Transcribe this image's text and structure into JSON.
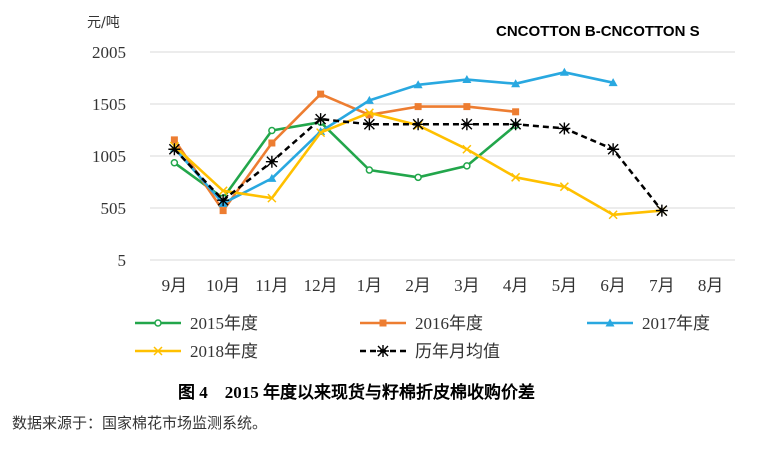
{
  "chart_data": {
    "type": "line",
    "title": "CNCOTTON B-CNCOTTON S",
    "ylabel": "元/吨",
    "xlabel": "",
    "ylim": [
      5,
      2005
    ],
    "yticks": [
      5,
      505,
      1005,
      1505,
      2005
    ],
    "grid": true,
    "legend_position": "bottom",
    "categories": [
      "9月",
      "10月",
      "11月",
      "12月",
      "1月",
      "2月",
      "3月",
      "4月",
      "5月",
      "6月",
      "7月",
      "8月"
    ],
    "series": [
      {
        "name": "2015年度",
        "color": "#22a64b",
        "marker": "circle",
        "dashed": false,
        "values": [
          940,
          600,
          1250,
          1330,
          870,
          800,
          910,
          1300,
          null,
          null,
          null,
          null
        ]
      },
      {
        "name": "2016年度",
        "color": "#ed7d31",
        "marker": "square",
        "dashed": false,
        "values": [
          1160,
          480,
          1130,
          1600,
          1400,
          1480,
          1480,
          1430,
          null,
          null,
          null,
          null
        ]
      },
      {
        "name": "2017年度",
        "color": "#29a8e0",
        "marker": "triangle",
        "dashed": false,
        "values": [
          1080,
          550,
          790,
          1240,
          1540,
          1690,
          1740,
          1700,
          1810,
          1710,
          null,
          null
        ]
      },
      {
        "name": "2018年度",
        "color": "#ffc000",
        "marker": "x",
        "dashed": false,
        "values": [
          1100,
          670,
          600,
          1230,
          1420,
          1300,
          1070,
          800,
          710,
          440,
          480,
          null
        ]
      },
      {
        "name": "历年月均值",
        "color": "#000000",
        "marker": "star",
        "dashed": true,
        "values": [
          1070,
          580,
          950,
          1360,
          1310,
          1310,
          1310,
          1310,
          1270,
          1070,
          480,
          null
        ]
      }
    ]
  },
  "caption": "图 4　2015 年度以来现货与籽棉折皮棉收购价差",
  "source": "数据来源于：国家棉花市场监测系统。"
}
